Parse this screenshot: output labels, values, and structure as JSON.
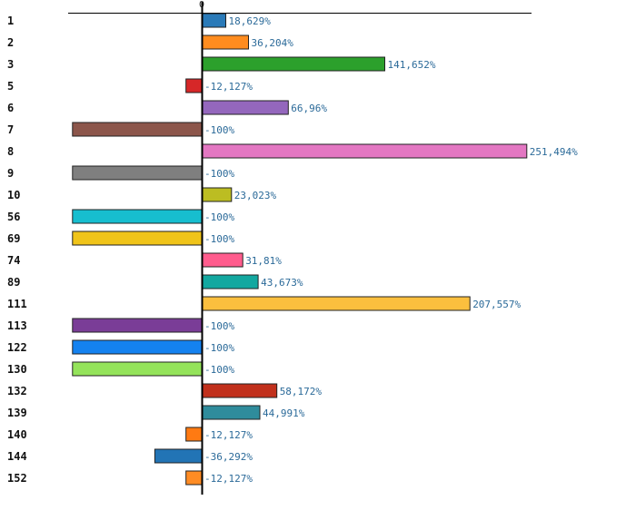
{
  "chart_data": {
    "type": "bar",
    "orientation": "horizontal",
    "x_tick_label": "0",
    "xlim": [
      -100,
      251.494
    ],
    "unit_suffix": "%",
    "categories": [
      "1",
      "2",
      "3",
      "5",
      "6",
      "7",
      "8",
      "9",
      "10",
      "56",
      "69",
      "74",
      "89",
      "111",
      "113",
      "122",
      "130",
      "132",
      "139",
      "140",
      "144",
      "152"
    ],
    "values": [
      18.629,
      36.204,
      141.652,
      -12.127,
      66.96,
      -100,
      251.494,
      -100,
      23.023,
      -100,
      -100,
      31.81,
      43.673,
      207.557,
      -100,
      -100,
      -100,
      58.172,
      44.991,
      -12.127,
      -36.292,
      -12.127
    ],
    "value_labels": [
      "18,629%",
      "36,204%",
      "141,652%",
      "-12,127%",
      "66,96%",
      "-100%",
      "251,494%",
      "-100%",
      "23,023%",
      "-100%",
      "-100%",
      "31,81%",
      "43,673%",
      "207,557%",
      "-100%",
      "-100%",
      "-100%",
      "58,172%",
      "44,991%",
      "-12,127%",
      "-36,292%",
      "-12,127%"
    ],
    "colors": [
      "#2a7ab8",
      "#ff8c1f",
      "#2ca02c",
      "#d62728",
      "#9467bd",
      "#8c564b",
      "#e377c2",
      "#7f7f7f",
      "#bcbd22",
      "#17becf",
      "#f0c419",
      "#ff5c8d",
      "#13a8a0",
      "#fbbf3e",
      "#7a3d97",
      "#1482f0",
      "#94e35a",
      "#c1301c",
      "#2f8c9c",
      "#ff7a12",
      "#2274b5",
      "#ff8c24"
    ]
  }
}
